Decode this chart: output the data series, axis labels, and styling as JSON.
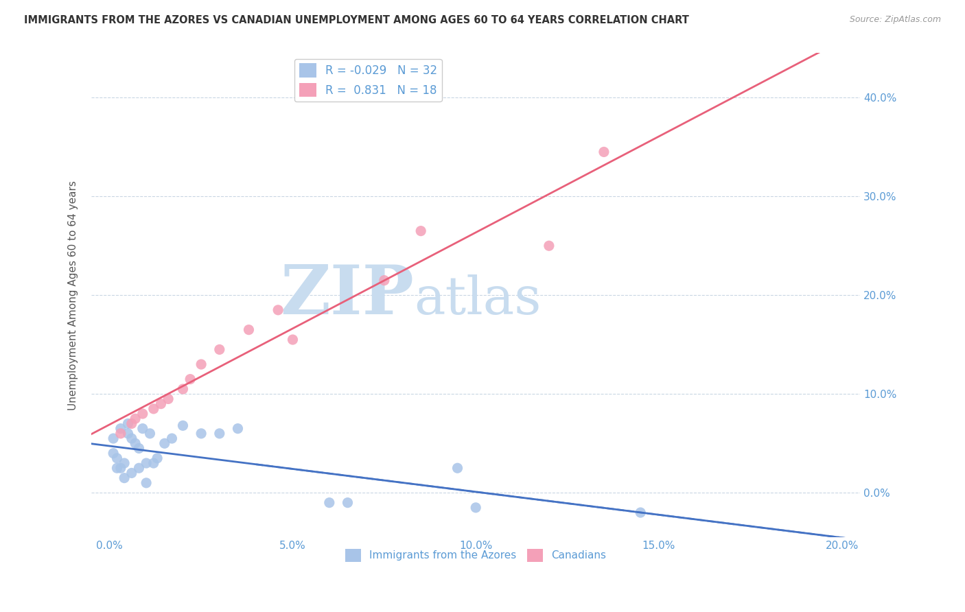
{
  "title": "IMMIGRANTS FROM THE AZORES VS CANADIAN UNEMPLOYMENT AMONG AGES 60 TO 64 YEARS CORRELATION CHART",
  "source": "Source: ZipAtlas.com",
  "ylabel": "Unemployment Among Ages 60 to 64 years",
  "xlabel_ticks": [
    "0.0%",
    "5.0%",
    "10.0%",
    "15.0%",
    "20.0%"
  ],
  "xlabel_vals": [
    0.0,
    0.05,
    0.1,
    0.15,
    0.2
  ],
  "ylabel_ticks": [
    "0.0%",
    "10.0%",
    "20.0%",
    "30.0%",
    "40.0%"
  ],
  "ylabel_vals": [
    0.0,
    0.1,
    0.2,
    0.3,
    0.4
  ],
  "xlim": [
    -0.005,
    0.205
  ],
  "ylim": [
    -0.045,
    0.445
  ],
  "legend1_label": "Immigrants from the Azores",
  "legend2_label": "Canadians",
  "R1": -0.029,
  "N1": 32,
  "R2": 0.831,
  "N2": 18,
  "color_blue": "#A8C4E8",
  "color_pink": "#F4A0B8",
  "line_blue": "#4472C4",
  "line_pink": "#E8607A",
  "watermark_zip": "ZIP",
  "watermark_atlas": "atlas",
  "watermark_color_zip": "#C8DCEF",
  "watermark_color_atlas": "#C8DCEF",
  "blue_scatter_x": [
    0.001,
    0.001,
    0.002,
    0.002,
    0.003,
    0.003,
    0.004,
    0.004,
    0.005,
    0.005,
    0.006,
    0.006,
    0.007,
    0.008,
    0.008,
    0.009,
    0.01,
    0.01,
    0.011,
    0.012,
    0.013,
    0.015,
    0.017,
    0.02,
    0.025,
    0.03,
    0.035,
    0.06,
    0.065,
    0.095,
    0.1,
    0.145
  ],
  "blue_scatter_y": [
    0.055,
    0.04,
    0.035,
    0.025,
    0.065,
    0.025,
    0.03,
    0.015,
    0.07,
    0.06,
    0.055,
    0.02,
    0.05,
    0.045,
    0.025,
    0.065,
    0.03,
    0.01,
    0.06,
    0.03,
    0.035,
    0.05,
    0.055,
    0.068,
    0.06,
    0.06,
    0.065,
    -0.01,
    -0.01,
    0.025,
    -0.015,
    -0.02
  ],
  "pink_scatter_x": [
    0.003,
    0.006,
    0.007,
    0.009,
    0.012,
    0.014,
    0.016,
    0.02,
    0.022,
    0.025,
    0.03,
    0.038,
    0.046,
    0.05,
    0.075,
    0.085,
    0.12,
    0.135
  ],
  "pink_scatter_y": [
    0.06,
    0.07,
    0.075,
    0.08,
    0.085,
    0.09,
    0.095,
    0.105,
    0.115,
    0.13,
    0.145,
    0.165,
    0.185,
    0.155,
    0.215,
    0.265,
    0.25,
    0.345
  ]
}
